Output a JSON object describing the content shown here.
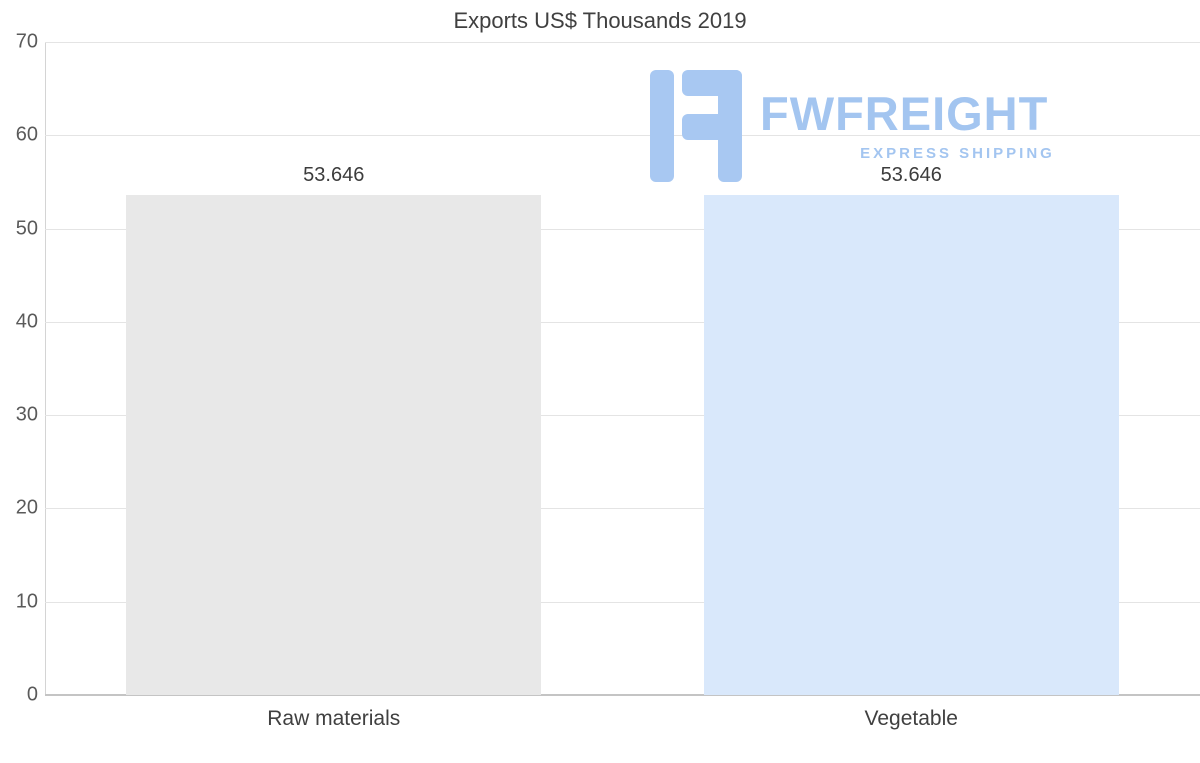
{
  "chart_data": {
    "type": "bar",
    "title": "Exports US$ Thousands 2019",
    "categories": [
      "Raw materials",
      "Vegetable"
    ],
    "values": [
      53.646,
      53.646
    ],
    "data_labels": [
      "53.646",
      "53.646"
    ],
    "bar_colors": [
      "#e8e8e8",
      "#d9e8fb"
    ],
    "xlabel": "",
    "ylabel": "",
    "ylim": [
      0,
      70
    ],
    "yticks": [
      0,
      10,
      20,
      30,
      40,
      50,
      60,
      70
    ],
    "grid": "horizontal",
    "legend": "none"
  },
  "watermark": {
    "name": "FWFREIGHT",
    "tagline": "EXPRESS SHIPPING",
    "brand_color": "#a3c5f0"
  }
}
